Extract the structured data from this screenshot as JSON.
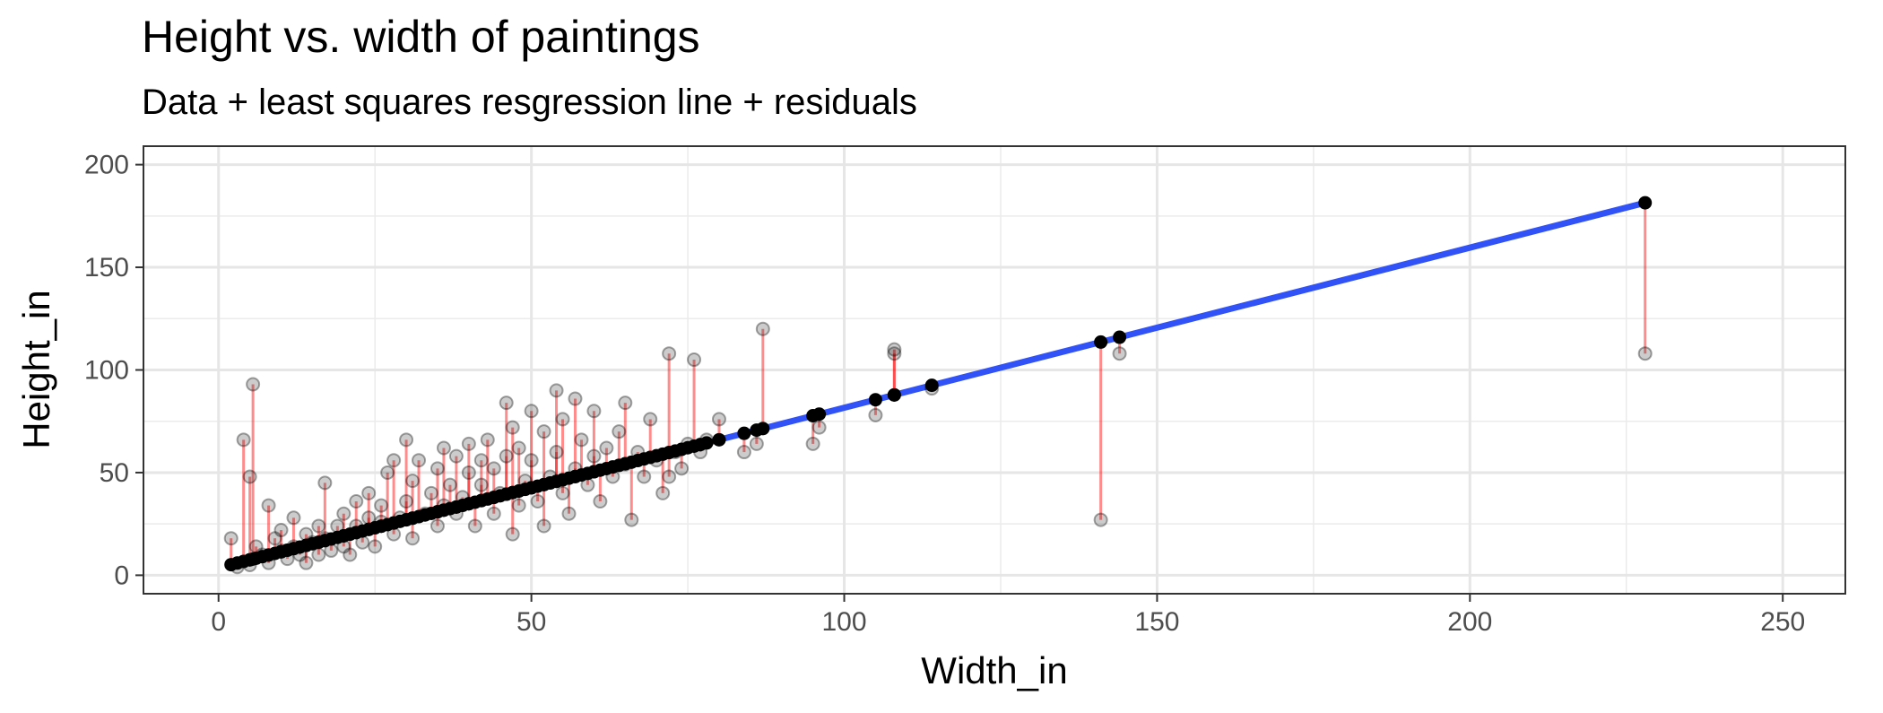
{
  "chart_data": {
    "type": "scatter",
    "title": "Height vs. width of paintings",
    "subtitle": "Data + least squares resgression line + residuals",
    "xlabel": "Width_in",
    "ylabel": "Height_in",
    "xlim": [
      -12,
      260
    ],
    "ylim": [
      -9,
      209
    ],
    "x_ticks": [
      0,
      50,
      100,
      150,
      200,
      250
    ],
    "y_ticks": [
      0,
      50,
      100,
      150,
      200
    ],
    "x_tick_labels": [
      "0",
      "50",
      "100",
      "150",
      "200",
      "250"
    ],
    "y_tick_labels": [
      "0",
      "50",
      "100",
      "150",
      "200"
    ],
    "grid": true,
    "legend": "none",
    "regression_line": {
      "intercept": 3.6,
      "slope": 0.78,
      "x_range": [
        2,
        228
      ],
      "color": "#3152f7"
    },
    "colors": {
      "observed": "#000000",
      "fitted": "#000000",
      "residual": "#ff0000",
      "line": "#3152f7"
    },
    "points": [
      {
        "x": 2,
        "y": 18
      },
      {
        "x": 3,
        "y": 4
      },
      {
        "x": 4,
        "y": 66
      },
      {
        "x": 5,
        "y": 48
      },
      {
        "x": 5.5,
        "y": 93
      },
      {
        "x": 5,
        "y": 5
      },
      {
        "x": 6,
        "y": 14
      },
      {
        "x": 7,
        "y": 10
      },
      {
        "x": 8,
        "y": 34
      },
      {
        "x": 8,
        "y": 6
      },
      {
        "x": 9,
        "y": 18
      },
      {
        "x": 10,
        "y": 12
      },
      {
        "x": 10,
        "y": 22
      },
      {
        "x": 11,
        "y": 8
      },
      {
        "x": 12,
        "y": 28
      },
      {
        "x": 12,
        "y": 14
      },
      {
        "x": 13,
        "y": 10
      },
      {
        "x": 14,
        "y": 20
      },
      {
        "x": 14,
        "y": 6
      },
      {
        "x": 15,
        "y": 16
      },
      {
        "x": 16,
        "y": 24
      },
      {
        "x": 16,
        "y": 10
      },
      {
        "x": 17,
        "y": 45
      },
      {
        "x": 17,
        "y": 18
      },
      {
        "x": 18,
        "y": 12
      },
      {
        "x": 19,
        "y": 24
      },
      {
        "x": 20,
        "y": 14
      },
      {
        "x": 20,
        "y": 30
      },
      {
        "x": 21,
        "y": 10
      },
      {
        "x": 22,
        "y": 24
      },
      {
        "x": 22,
        "y": 36
      },
      {
        "x": 23,
        "y": 16
      },
      {
        "x": 24,
        "y": 28
      },
      {
        "x": 24,
        "y": 40
      },
      {
        "x": 25,
        "y": 14
      },
      {
        "x": 26,
        "y": 26
      },
      {
        "x": 26,
        "y": 34
      },
      {
        "x": 27,
        "y": 50
      },
      {
        "x": 28,
        "y": 20
      },
      {
        "x": 28,
        "y": 56
      },
      {
        "x": 29,
        "y": 28
      },
      {
        "x": 30,
        "y": 36
      },
      {
        "x": 30,
        "y": 66
      },
      {
        "x": 31,
        "y": 18
      },
      {
        "x": 31,
        "y": 46
      },
      {
        "x": 32,
        "y": 56
      },
      {
        "x": 33,
        "y": 30
      },
      {
        "x": 34,
        "y": 40
      },
      {
        "x": 35,
        "y": 24
      },
      {
        "x": 35,
        "y": 52
      },
      {
        "x": 36,
        "y": 34
      },
      {
        "x": 36,
        "y": 62
      },
      {
        "x": 37,
        "y": 44
      },
      {
        "x": 38,
        "y": 30
      },
      {
        "x": 38,
        "y": 58
      },
      {
        "x": 39,
        "y": 38
      },
      {
        "x": 40,
        "y": 50
      },
      {
        "x": 40,
        "y": 64
      },
      {
        "x": 41,
        "y": 24
      },
      {
        "x": 42,
        "y": 44
      },
      {
        "x": 42,
        "y": 56
      },
      {
        "x": 43,
        "y": 66
      },
      {
        "x": 44,
        "y": 30
      },
      {
        "x": 44,
        "y": 52
      },
      {
        "x": 45,
        "y": 40
      },
      {
        "x": 46,
        "y": 84
      },
      {
        "x": 46,
        "y": 58
      },
      {
        "x": 47,
        "y": 72
      },
      {
        "x": 47,
        "y": 20
      },
      {
        "x": 48,
        "y": 34
      },
      {
        "x": 48,
        "y": 62
      },
      {
        "x": 49,
        "y": 46
      },
      {
        "x": 50,
        "y": 56
      },
      {
        "x": 50,
        "y": 80
      },
      {
        "x": 51,
        "y": 36
      },
      {
        "x": 52,
        "y": 70
      },
      {
        "x": 52,
        "y": 24
      },
      {
        "x": 53,
        "y": 48
      },
      {
        "x": 54,
        "y": 90
      },
      {
        "x": 54,
        "y": 60
      },
      {
        "x": 55,
        "y": 76
      },
      {
        "x": 55,
        "y": 40
      },
      {
        "x": 56,
        "y": 30
      },
      {
        "x": 57,
        "y": 86
      },
      {
        "x": 57,
        "y": 52
      },
      {
        "x": 58,
        "y": 66
      },
      {
        "x": 59,
        "y": 44
      },
      {
        "x": 60,
        "y": 58
      },
      {
        "x": 60,
        "y": 80
      },
      {
        "x": 61,
        "y": 36
      },
      {
        "x": 62,
        "y": 62
      },
      {
        "x": 63,
        "y": 48
      },
      {
        "x": 64,
        "y": 70
      },
      {
        "x": 65,
        "y": 84
      },
      {
        "x": 65,
        "y": 54
      },
      {
        "x": 66,
        "y": 27
      },
      {
        "x": 67,
        "y": 60
      },
      {
        "x": 68,
        "y": 48
      },
      {
        "x": 69,
        "y": 76
      },
      {
        "x": 70,
        "y": 56
      },
      {
        "x": 71,
        "y": 40
      },
      {
        "x": 72,
        "y": 108
      },
      {
        "x": 72,
        "y": 48
      },
      {
        "x": 73,
        "y": 60
      },
      {
        "x": 74,
        "y": 52
      },
      {
        "x": 75,
        "y": 64
      },
      {
        "x": 76,
        "y": 105
      },
      {
        "x": 77,
        "y": 60
      },
      {
        "x": 78,
        "y": 66
      },
      {
        "x": 80,
        "y": 76
      },
      {
        "x": 84,
        "y": 60
      },
      {
        "x": 86,
        "y": 64
      },
      {
        "x": 87,
        "y": 120
      },
      {
        "x": 95,
        "y": 64
      },
      {
        "x": 96,
        "y": 72
      },
      {
        "x": 105,
        "y": 78
      },
      {
        "x": 108,
        "y": 110
      },
      {
        "x": 108,
        "y": 108
      },
      {
        "x": 114,
        "y": 91
      },
      {
        "x": 141,
        "y": 27
      },
      {
        "x": 144,
        "y": 108
      },
      {
        "x": 228,
        "y": 108
      }
    ]
  }
}
